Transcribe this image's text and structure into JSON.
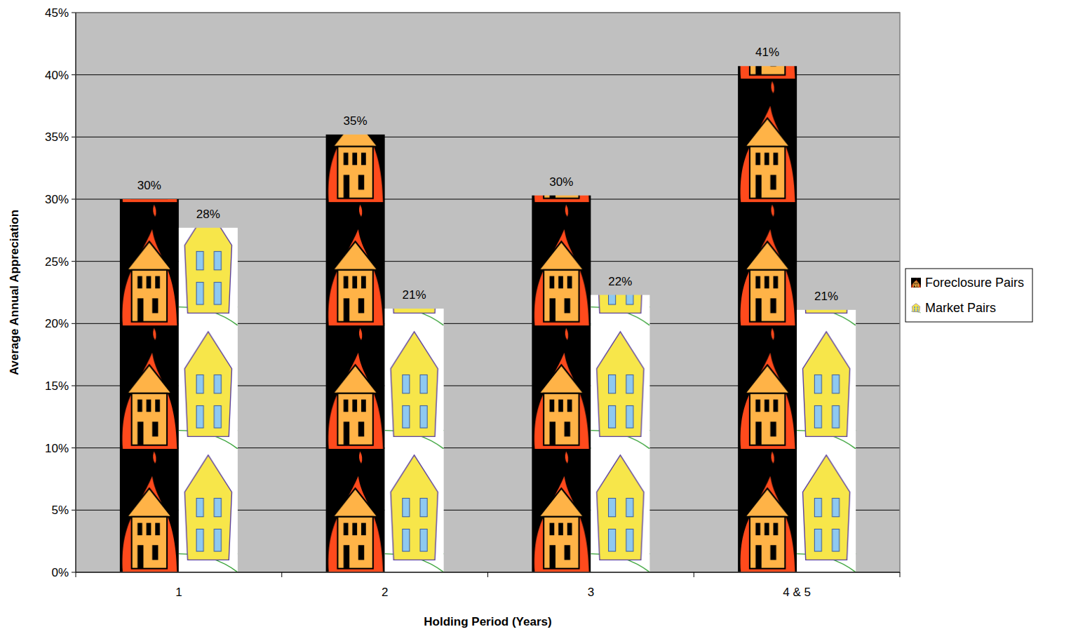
{
  "chart_data": {
    "type": "bar",
    "x_label": "Holding Period (Years)",
    "y_label": "Average Annual Appreciation",
    "categories": [
      "1",
      "2",
      "3",
      "4 & 5"
    ],
    "series": [
      {
        "name": "Foreclosure Pairs",
        "color": "#000000",
        "values": [
          30.0,
          35.2,
          30.3,
          40.7
        ],
        "value_labels": [
          "30%",
          "35%",
          "30%",
          "41%"
        ]
      },
      {
        "name": "Market Pairs",
        "color": "#ffffff",
        "values": [
          27.7,
          21.2,
          22.3,
          21.1
        ],
        "value_labels": [
          "28%",
          "21%",
          "22%",
          "21%"
        ]
      }
    ],
    "ylim": [
      0,
      45
    ],
    "yticks": [
      {
        "value": 0,
        "label": "0%"
      },
      {
        "value": 5,
        "label": "5%"
      },
      {
        "value": 10,
        "label": "10%"
      },
      {
        "value": 15,
        "label": "15%"
      },
      {
        "value": 20,
        "label": "20%"
      },
      {
        "value": 25,
        "label": "25%"
      },
      {
        "value": 30,
        "label": "30%"
      },
      {
        "value": 35,
        "label": "35%"
      },
      {
        "value": 40,
        "label": "40%"
      },
      {
        "value": 45,
        "label": "45%"
      }
    ],
    "grid": true,
    "legend": "right",
    "data_labels": true
  }
}
